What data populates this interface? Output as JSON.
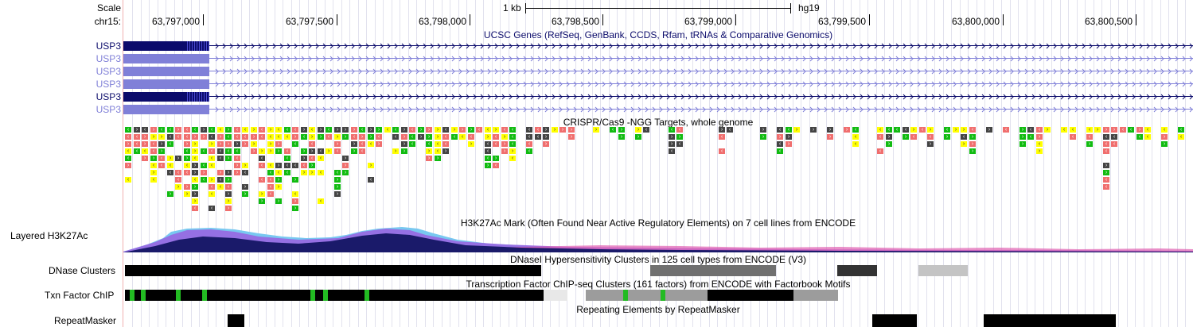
{
  "scale": {
    "label": "Scale",
    "bar_label": "1 kb",
    "assembly": "hg19"
  },
  "chrom": "chr15:",
  "coordinates": [
    "63,797,000",
    "63,797,500",
    "63,798,000",
    "63,798,500",
    "63,799,000",
    "63,799,500",
    "63,800,000",
    "63,800,500"
  ],
  "tracks": {
    "ucsc_genes": {
      "title": "UCSC Genes (RefSeq, GenBank, CCDS, Rfam, tRNAs & Comparative Genomics)",
      "genes": [
        {
          "name": "USP3",
          "style": "dark"
        },
        {
          "name": "USP3",
          "style": "light"
        },
        {
          "name": "USP3",
          "style": "light"
        },
        {
          "name": "USP3",
          "style": "light"
        },
        {
          "name": "USP3",
          "style": "dark"
        },
        {
          "name": "USP3",
          "style": "light"
        }
      ],
      "dark_color": "#0b0b6b",
      "light_color": "#8080d8"
    },
    "crispr": {
      "title": "CRISPR/Cas9 -NGG Targets, whole genome",
      "colors": [
        "#f06e6e",
        "#ffff00",
        "#11bb11",
        "#444444",
        "#999999"
      ]
    },
    "h3k27ac": {
      "label": "Layered H3K27Ac",
      "title": "H3K27Ac Mark (Often Found Near Active Regulatory Elements) on 7 cell lines from ENCODE"
    },
    "dnase": {
      "label": "DNase Clusters",
      "title": "DNaseI Hypersensitivity Clusters in 125 cell types from ENCODE (V3)"
    },
    "txn": {
      "label": "Txn Factor ChIP",
      "title": "Transcription Factor ChIP-seq Clusters (161 factors) from ENCODE with Factorbook Motifs"
    },
    "rmsk": {
      "label": "RepeatMasker",
      "title": "Repeating Elements by RepeatMasker"
    }
  }
}
